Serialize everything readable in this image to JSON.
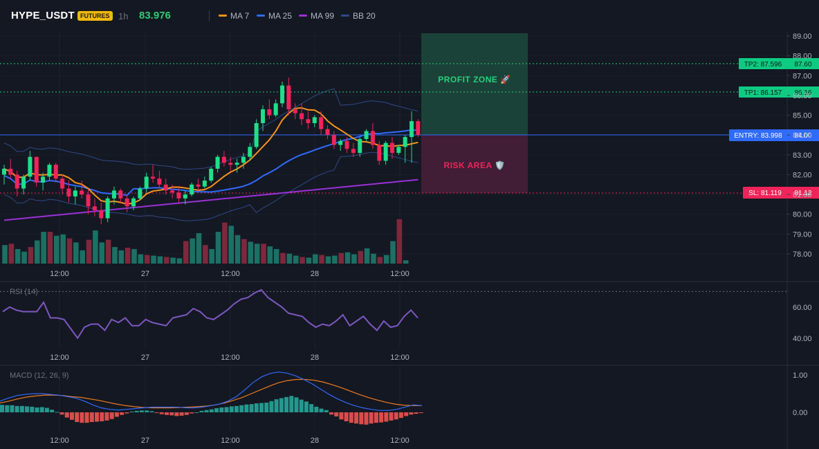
{
  "header": {
    "symbol": "HYPE_USDT",
    "badge": "FUTURES",
    "timeframe": "1h",
    "last_price": "83.976",
    "legend": [
      {
        "label": "MA 7",
        "color": "#f7931a"
      },
      {
        "label": "MA 25",
        "color": "#2f6bff"
      },
      {
        "label": "MA 99",
        "color": "#9b30d9"
      },
      {
        "label": "BB 20",
        "color": "#2d4a8a"
      }
    ]
  },
  "colors": {
    "up": "#1fdf8a",
    "down": "#f0245a",
    "vol_up": "#1d7a6b",
    "vol_down": "#8a2a3f",
    "ma7": "#f7931a",
    "ma25": "#2f6bff",
    "ma99": "#9b30d9",
    "bb": "#2d4a8a",
    "rsi": "#7e57c2",
    "macd": "#2f6bff",
    "signal": "#f07b1e",
    "hist_up": "#26a69a",
    "hist_down": "#ef5350"
  },
  "zones": {
    "profit": "PROFIT ZONE 🚀",
    "risk": "RISK AREA 🛡️",
    "tp2_tag": "TP2: 87.596",
    "tp2_axis": "87.60",
    "tp1_tag": "TP1: 86.157",
    "tp1_axis": "86.16",
    "entry_tag": "ENTRY: 83.998",
    "entry_axis": "84.00",
    "sl_tag": "SL: 81.119",
    "sl_axis": "81.12"
  },
  "chart_data": [
    {
      "type": "candlestick",
      "title": "HYPE_USDT",
      "ylim": [
        77.5,
        89.25
      ],
      "y_ticks": [
        "89.00",
        "88.00",
        "87.00",
        "86.00",
        "85.00",
        "84.00",
        "83.00",
        "82.00",
        "81.00",
        "80.00",
        "79.00",
        "78.00"
      ],
      "x_ticks": [
        "12:00",
        "27",
        "12:00",
        "28",
        "12:00"
      ],
      "candles": [
        {
          "o": 82.0,
          "h": 82.5,
          "l": 81.5,
          "c": 82.3
        },
        {
          "o": 82.3,
          "h": 82.8,
          "l": 81.8,
          "c": 82.0
        },
        {
          "o": 82.0,
          "h": 82.2,
          "l": 80.9,
          "c": 81.3
        },
        {
          "o": 81.3,
          "h": 82.0,
          "l": 81.0,
          "c": 81.9
        },
        {
          "o": 81.9,
          "h": 83.2,
          "l": 81.7,
          "c": 82.9
        },
        {
          "o": 82.9,
          "h": 82.9,
          "l": 81.4,
          "c": 81.6
        },
        {
          "o": 81.6,
          "h": 82.1,
          "l": 81.2,
          "c": 81.9
        },
        {
          "o": 81.9,
          "h": 82.6,
          "l": 81.7,
          "c": 82.5
        },
        {
          "o": 82.5,
          "h": 82.6,
          "l": 81.6,
          "c": 81.8
        },
        {
          "o": 81.8,
          "h": 82.0,
          "l": 81.0,
          "c": 81.3
        },
        {
          "o": 81.3,
          "h": 81.7,
          "l": 80.6,
          "c": 80.9
        },
        {
          "o": 80.9,
          "h": 81.4,
          "l": 80.5,
          "c": 81.2
        },
        {
          "o": 81.2,
          "h": 81.7,
          "l": 80.8,
          "c": 81.0
        },
        {
          "o": 81.0,
          "h": 81.3,
          "l": 80.0,
          "c": 80.4
        },
        {
          "o": 80.4,
          "h": 80.8,
          "l": 79.9,
          "c": 80.2
        },
        {
          "o": 80.2,
          "h": 80.6,
          "l": 79.5,
          "c": 79.8
        },
        {
          "o": 79.8,
          "h": 80.9,
          "l": 79.6,
          "c": 80.8
        },
        {
          "o": 80.8,
          "h": 81.4,
          "l": 80.5,
          "c": 81.2
        },
        {
          "o": 81.2,
          "h": 81.3,
          "l": 80.6,
          "c": 80.8
        },
        {
          "o": 80.8,
          "h": 81.0,
          "l": 80.1,
          "c": 80.4
        },
        {
          "o": 80.4,
          "h": 80.9,
          "l": 80.2,
          "c": 80.8
        },
        {
          "o": 80.8,
          "h": 81.4,
          "l": 80.7,
          "c": 81.3
        },
        {
          "o": 81.3,
          "h": 82.1,
          "l": 81.1,
          "c": 81.9
        },
        {
          "o": 81.9,
          "h": 82.5,
          "l": 81.6,
          "c": 81.8
        },
        {
          "o": 81.8,
          "h": 82.2,
          "l": 81.3,
          "c": 81.5
        },
        {
          "o": 81.5,
          "h": 81.8,
          "l": 81.0,
          "c": 81.2
        },
        {
          "o": 81.2,
          "h": 81.5,
          "l": 80.8,
          "c": 81.1
        },
        {
          "o": 81.1,
          "h": 81.3,
          "l": 80.6,
          "c": 80.8
        },
        {
          "o": 80.8,
          "h": 81.2,
          "l": 80.5,
          "c": 81.0
        },
        {
          "o": 81.0,
          "h": 81.6,
          "l": 80.9,
          "c": 81.5
        },
        {
          "o": 81.5,
          "h": 81.8,
          "l": 81.2,
          "c": 81.4
        },
        {
          "o": 81.4,
          "h": 81.9,
          "l": 81.3,
          "c": 81.7
        },
        {
          "o": 81.7,
          "h": 82.4,
          "l": 81.6,
          "c": 82.3
        },
        {
          "o": 82.3,
          "h": 83.0,
          "l": 82.1,
          "c": 82.9
        },
        {
          "o": 82.9,
          "h": 83.2,
          "l": 82.4,
          "c": 82.6
        },
        {
          "o": 82.6,
          "h": 82.9,
          "l": 82.2,
          "c": 82.5
        },
        {
          "o": 82.5,
          "h": 82.8,
          "l": 82.1,
          "c": 82.6
        },
        {
          "o": 82.6,
          "h": 83.1,
          "l": 82.3,
          "c": 82.9
        },
        {
          "o": 82.9,
          "h": 83.6,
          "l": 82.7,
          "c": 83.4
        },
        {
          "o": 83.4,
          "h": 84.8,
          "l": 83.3,
          "c": 84.6
        },
        {
          "o": 84.6,
          "h": 85.5,
          "l": 84.2,
          "c": 85.3
        },
        {
          "o": 85.3,
          "h": 85.8,
          "l": 84.8,
          "c": 85.0
        },
        {
          "o": 85.0,
          "h": 85.8,
          "l": 84.9,
          "c": 85.6
        },
        {
          "o": 85.6,
          "h": 86.7,
          "l": 85.4,
          "c": 86.5
        },
        {
          "o": 86.5,
          "h": 86.9,
          "l": 85.0,
          "c": 85.3
        },
        {
          "o": 85.3,
          "h": 85.6,
          "l": 84.8,
          "c": 85.1
        },
        {
          "o": 85.1,
          "h": 85.6,
          "l": 84.5,
          "c": 84.8
        },
        {
          "o": 84.8,
          "h": 85.2,
          "l": 84.3,
          "c": 84.6
        },
        {
          "o": 84.6,
          "h": 85.0,
          "l": 84.4,
          "c": 84.9
        },
        {
          "o": 84.9,
          "h": 85.2,
          "l": 84.0,
          "c": 84.3
        },
        {
          "o": 84.3,
          "h": 84.5,
          "l": 83.8,
          "c": 84.0
        },
        {
          "o": 84.0,
          "h": 84.2,
          "l": 83.3,
          "c": 83.5
        },
        {
          "o": 83.5,
          "h": 83.8,
          "l": 83.2,
          "c": 83.7
        },
        {
          "o": 83.7,
          "h": 83.9,
          "l": 83.1,
          "c": 83.3
        },
        {
          "o": 83.3,
          "h": 83.6,
          "l": 82.9,
          "c": 83.1
        },
        {
          "o": 83.1,
          "h": 83.9,
          "l": 82.9,
          "c": 83.8
        },
        {
          "o": 83.8,
          "h": 84.3,
          "l": 83.7,
          "c": 84.2
        },
        {
          "o": 84.2,
          "h": 84.6,
          "l": 83.3,
          "c": 83.5
        },
        {
          "o": 83.5,
          "h": 83.7,
          "l": 82.5,
          "c": 82.7
        },
        {
          "o": 82.7,
          "h": 83.7,
          "l": 82.5,
          "c": 83.6
        },
        {
          "o": 83.6,
          "h": 83.9,
          "l": 82.8,
          "c": 83.1
        },
        {
          "o": 83.1,
          "h": 83.5,
          "l": 83.0,
          "c": 83.4
        },
        {
          "o": 83.4,
          "h": 84.0,
          "l": 82.6,
          "c": 83.9
        },
        {
          "o": 83.9,
          "h": 85.2,
          "l": 82.6,
          "c": 84.7
        },
        {
          "o": 84.7,
          "h": 84.8,
          "l": 83.9,
          "c": 84.0
        }
      ]
    },
    {
      "type": "bar",
      "title": "Volume",
      "values": [
        28,
        30,
        22,
        18,
        25,
        35,
        48,
        48,
        42,
        44,
        38,
        32,
        20,
        36,
        50,
        32,
        36,
        25,
        20,
        24,
        22,
        14,
        13,
        12,
        11,
        10,
        9,
        8,
        34,
        38,
        46,
        28,
        22,
        48,
        62,
        57,
        43,
        37,
        33,
        30,
        30,
        26,
        22,
        16,
        15,
        12,
        10,
        9,
        14,
        13,
        11,
        12,
        16,
        17,
        14,
        19,
        23,
        15,
        10,
        13,
        34,
        67,
        5
      ],
      "ylim": [
        0,
        70
      ]
    },
    {
      "type": "line",
      "title": "RSI (14)",
      "ylim": [
        35,
        75
      ],
      "y_ticks": [
        "60.00",
        "40.00"
      ],
      "values": [
        57,
        60,
        58,
        57,
        57,
        57,
        63,
        53,
        53,
        52,
        46,
        40,
        47,
        49,
        49,
        45,
        52,
        50,
        53,
        48,
        48,
        52,
        50,
        49,
        48,
        53,
        54,
        55,
        59,
        57,
        53,
        52,
        55,
        58,
        62,
        65,
        66,
        69,
        71,
        66,
        63,
        60,
        56,
        55,
        54,
        50,
        47,
        49,
        48,
        51,
        55,
        48,
        51,
        54,
        49,
        45,
        51,
        47,
        48,
        54,
        58,
        53
      ],
      "threshold": 70
    },
    {
      "type": "line+bar",
      "title": "MACD (12, 26, 9)",
      "ylim": [
        -0.5,
        1.1
      ],
      "y_ticks": [
        "1.00",
        "0.00"
      ],
      "macd": [
        0.3,
        0.38,
        0.45,
        0.48,
        0.5,
        0.5,
        0.48,
        0.46,
        0.42,
        0.38,
        0.3,
        0.2,
        0.12,
        0.08,
        0.06,
        0.08,
        0.1,
        0.12,
        0.14,
        0.14,
        0.14,
        0.14,
        0.12,
        0.12,
        0.14,
        0.18,
        0.22,
        0.3,
        0.42,
        0.6,
        0.8,
        0.95,
        1.04,
        1.08,
        1.05,
        0.98,
        0.88,
        0.76,
        0.62,
        0.48,
        0.36,
        0.26,
        0.18,
        0.12,
        0.08,
        0.05,
        0.05,
        0.08,
        0.14,
        0.2,
        0.18
      ],
      "signal": [
        0.25,
        0.3,
        0.36,
        0.41,
        0.44,
        0.46,
        0.46,
        0.45,
        0.42,
        0.4,
        0.36,
        0.32,
        0.27,
        0.22,
        0.18,
        0.15,
        0.13,
        0.12,
        0.12,
        0.12,
        0.13,
        0.14,
        0.15,
        0.17,
        0.2,
        0.25,
        0.32,
        0.4,
        0.5,
        0.6,
        0.7,
        0.79,
        0.85,
        0.88,
        0.88,
        0.86,
        0.81,
        0.74,
        0.66,
        0.57,
        0.48,
        0.4,
        0.33,
        0.27,
        0.22,
        0.19,
        0.18,
        0.18
      ],
      "histogram": [
        0.2,
        0.19,
        0.19,
        0.17,
        0.17,
        0.16,
        0.15,
        0.13,
        0.14,
        0.12,
        0.07,
        0.01,
        -0.06,
        -0.14,
        -0.2,
        -0.26,
        -0.28,
        -0.28,
        -0.26,
        -0.25,
        -0.24,
        -0.22,
        -0.18,
        -0.12,
        -0.07,
        -0.03,
        0.02,
        0.04,
        0.05,
        0.05,
        0.03,
        -0.02,
        -0.05,
        -0.07,
        -0.08,
        -0.1,
        -0.09,
        -0.07,
        -0.03,
        0.0,
        0.04,
        0.06,
        0.08,
        0.11,
        0.13,
        0.14,
        0.16,
        0.17,
        0.19,
        0.21,
        0.22,
        0.24,
        0.25,
        0.26,
        0.3,
        0.35,
        0.38,
        0.41,
        0.44,
        0.4,
        0.34,
        0.29,
        0.22,
        0.15,
        0.1,
        0.06,
        -0.06,
        -0.11,
        -0.19,
        -0.24,
        -0.28,
        -0.3,
        -0.32,
        -0.33,
        -0.3,
        -0.28,
        -0.27,
        -0.25,
        -0.22,
        -0.19,
        -0.15,
        -0.1,
        -0.06,
        -0.04,
        -0.02
      ]
    }
  ]
}
